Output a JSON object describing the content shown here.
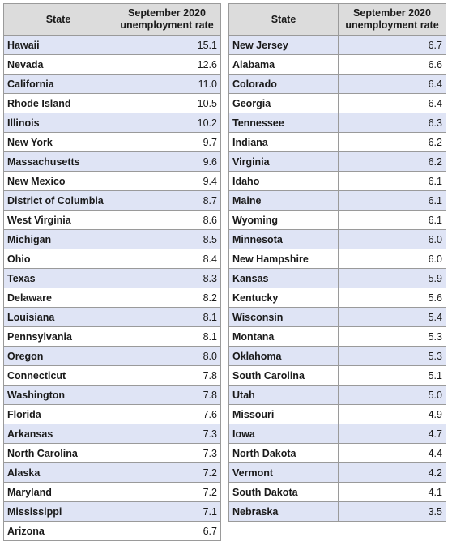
{
  "headers": {
    "state": "State",
    "rate": "September 2020\nunemployment rate"
  },
  "row_colors": {
    "odd": "#dfe4f5",
    "even": "#ffffff",
    "header": "#dcdcdc"
  },
  "left": [
    {
      "state": "Hawaii",
      "rate": "15.1"
    },
    {
      "state": "Nevada",
      "rate": "12.6"
    },
    {
      "state": "California",
      "rate": "11.0"
    },
    {
      "state": "Rhode Island",
      "rate": "10.5"
    },
    {
      "state": "Illinois",
      "rate": "10.2"
    },
    {
      "state": "New York",
      "rate": "9.7"
    },
    {
      "state": "Massachusetts",
      "rate": "9.6"
    },
    {
      "state": "New Mexico",
      "rate": "9.4"
    },
    {
      "state": "District of Columbia",
      "rate": "8.7"
    },
    {
      "state": "West Virginia",
      "rate": "8.6"
    },
    {
      "state": "Michigan",
      "rate": "8.5"
    },
    {
      "state": "Ohio",
      "rate": "8.4"
    },
    {
      "state": "Texas",
      "rate": "8.3"
    },
    {
      "state": "Delaware",
      "rate": "8.2"
    },
    {
      "state": "Louisiana",
      "rate": "8.1"
    },
    {
      "state": "Pennsylvania",
      "rate": "8.1"
    },
    {
      "state": "Oregon",
      "rate": "8.0"
    },
    {
      "state": "Connecticut",
      "rate": "7.8"
    },
    {
      "state": "Washington",
      "rate": "7.8"
    },
    {
      "state": "Florida",
      "rate": "7.6"
    },
    {
      "state": "Arkansas",
      "rate": "7.3"
    },
    {
      "state": "North Carolina",
      "rate": "7.3"
    },
    {
      "state": "Alaska",
      "rate": "7.2"
    },
    {
      "state": "Maryland",
      "rate": "7.2"
    },
    {
      "state": "Mississippi",
      "rate": "7.1"
    },
    {
      "state": "Arizona",
      "rate": "6.7"
    }
  ],
  "right": [
    {
      "state": "New Jersey",
      "rate": "6.7"
    },
    {
      "state": "Alabama",
      "rate": "6.6"
    },
    {
      "state": "Colorado",
      "rate": "6.4"
    },
    {
      "state": "Georgia",
      "rate": "6.4"
    },
    {
      "state": "Tennessee",
      "rate": "6.3"
    },
    {
      "state": "Indiana",
      "rate": "6.2"
    },
    {
      "state": "Virginia",
      "rate": "6.2"
    },
    {
      "state": "Idaho",
      "rate": "6.1"
    },
    {
      "state": "Maine",
      "rate": "6.1"
    },
    {
      "state": "Wyoming",
      "rate": "6.1"
    },
    {
      "state": "Minnesota",
      "rate": "6.0"
    },
    {
      "state": "New Hampshire",
      "rate": "6.0"
    },
    {
      "state": "Kansas",
      "rate": "5.9"
    },
    {
      "state": "Kentucky",
      "rate": "5.6"
    },
    {
      "state": "Wisconsin",
      "rate": "5.4"
    },
    {
      "state": "Montana",
      "rate": "5.3"
    },
    {
      "state": "Oklahoma",
      "rate": "5.3"
    },
    {
      "state": "South Carolina",
      "rate": "5.1"
    },
    {
      "state": "Utah",
      "rate": "5.0"
    },
    {
      "state": "Missouri",
      "rate": "4.9"
    },
    {
      "state": "Iowa",
      "rate": "4.7"
    },
    {
      "state": "North Dakota",
      "rate": "4.4"
    },
    {
      "state": "Vermont",
      "rate": "4.2"
    },
    {
      "state": "South Dakota",
      "rate": "4.1"
    },
    {
      "state": "Nebraska",
      "rate": "3.5"
    }
  ]
}
